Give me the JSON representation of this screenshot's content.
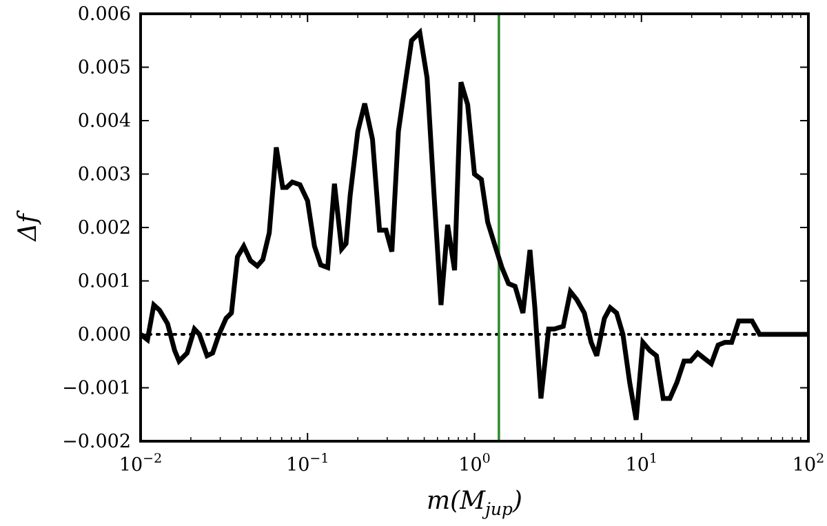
{
  "chart_data": {
    "type": "line",
    "title": "",
    "xlabel": "m(M_jup)",
    "xlabel_main": "m(M",
    "xlabel_sub": "jup",
    "xlabel_close": ")",
    "ylabel": "Δf",
    "x_scale": "log",
    "xlim": [
      0.01,
      100
    ],
    "ylim": [
      -0.002,
      0.006
    ],
    "x_ticks": [
      {
        "value": 0.01,
        "base": "10",
        "exp": "−2"
      },
      {
        "value": 0.1,
        "base": "10",
        "exp": "−1"
      },
      {
        "value": 1,
        "base": "10",
        "exp": "0"
      },
      {
        "value": 10,
        "base": "10",
        "exp": "1"
      },
      {
        "value": 100,
        "base": "10",
        "exp": "2"
      }
    ],
    "y_ticks": [
      {
        "value": -0.002,
        "label": "−0.002"
      },
      {
        "value": -0.001,
        "label": "−0.001"
      },
      {
        "value": 0.0,
        "label": "0.000"
      },
      {
        "value": 0.001,
        "label": "0.001"
      },
      {
        "value": 0.002,
        "label": "0.002"
      },
      {
        "value": 0.003,
        "label": "0.003"
      },
      {
        "value": 0.004,
        "label": "0.004"
      },
      {
        "value": 0.005,
        "label": "0.005"
      },
      {
        "value": 0.006,
        "label": "0.006"
      }
    ],
    "grid": false,
    "reference_lines": [
      {
        "orientation": "horizontal",
        "y": 0.0,
        "style": "dotted",
        "color": "#000000"
      },
      {
        "orientation": "vertical",
        "x": 1.4,
        "style": "solid",
        "color": "#2a8a2a"
      }
    ],
    "series": [
      {
        "color": "#000000",
        "x": [
          0.01,
          0.011,
          0.012,
          0.013,
          0.0145,
          0.016,
          0.017,
          0.019,
          0.021,
          0.0225,
          0.025,
          0.027,
          0.0295,
          0.0325,
          0.035,
          0.038,
          0.0415,
          0.0455,
          0.05,
          0.054,
          0.059,
          0.065,
          0.071,
          0.075,
          0.081,
          0.09,
          0.1,
          0.11,
          0.12,
          0.132,
          0.145,
          0.16,
          0.17,
          0.18,
          0.2,
          0.22,
          0.245,
          0.27,
          0.295,
          0.32,
          0.35,
          0.385,
          0.42,
          0.47,
          0.52,
          0.57,
          0.63,
          0.69,
          0.76,
          0.83,
          0.91,
          1.0,
          1.1,
          1.2,
          1.33,
          1.46,
          1.6,
          1.75,
          1.95,
          2.15,
          2.3,
          2.5,
          2.78,
          3.0,
          3.4,
          3.75,
          4.1,
          4.55,
          5.0,
          5.4,
          6.0,
          6.5,
          7.1,
          7.75,
          8.5,
          9.3,
          10.2,
          11.2,
          12.3,
          13.5,
          14.8,
          16.3,
          18.0,
          19.7,
          21.7,
          23.8,
          26.2,
          28.8,
          31.6,
          34.7,
          38.2,
          42.0,
          46.0,
          51.0,
          56.0,
          62.0,
          70.0,
          80.0,
          90.0,
          100.0
        ],
        "y": [
          0.0,
          -0.0001,
          0.00055,
          0.00045,
          0.0002,
          -0.0003,
          -0.0005,
          -0.00035,
          0.0001,
          0.0,
          -0.0004,
          -0.00035,
          0.0,
          0.0003,
          0.0004,
          0.00145,
          0.00165,
          0.00138,
          0.00128,
          0.0014,
          0.0019,
          0.0035,
          0.00275,
          0.00275,
          0.00285,
          0.0028,
          0.0025,
          0.00165,
          0.0013,
          0.00125,
          0.00282,
          0.0016,
          0.0017,
          0.0026,
          0.0038,
          0.00432,
          0.00365,
          0.00195,
          0.00195,
          0.00155,
          0.0038,
          0.0047,
          0.0055,
          0.00565,
          0.0048,
          0.0027,
          0.00055,
          0.00205,
          0.0012,
          0.00472,
          0.0043,
          0.003,
          0.0029,
          0.0021,
          0.00165,
          0.00125,
          0.00095,
          0.0009,
          0.0004,
          0.00158,
          0.0005,
          -0.0012,
          0.0001,
          0.0001,
          0.00015,
          0.0008,
          0.00065,
          0.0004,
          -0.00015,
          -0.0004,
          0.0003,
          0.0005,
          0.0004,
          0.0,
          -0.0009,
          -0.0016,
          -0.00015,
          -0.0003,
          -0.0004,
          -0.0012,
          -0.0012,
          -0.0009,
          -0.0005,
          -0.0005,
          -0.00035,
          -0.00045,
          -0.00055,
          -0.0002,
          -0.00015,
          -0.00015,
          0.00025,
          0.00025,
          0.00025,
          0.0,
          0.0,
          0.0,
          0.0,
          0.0,
          0.0,
          0.0
        ]
      }
    ]
  }
}
